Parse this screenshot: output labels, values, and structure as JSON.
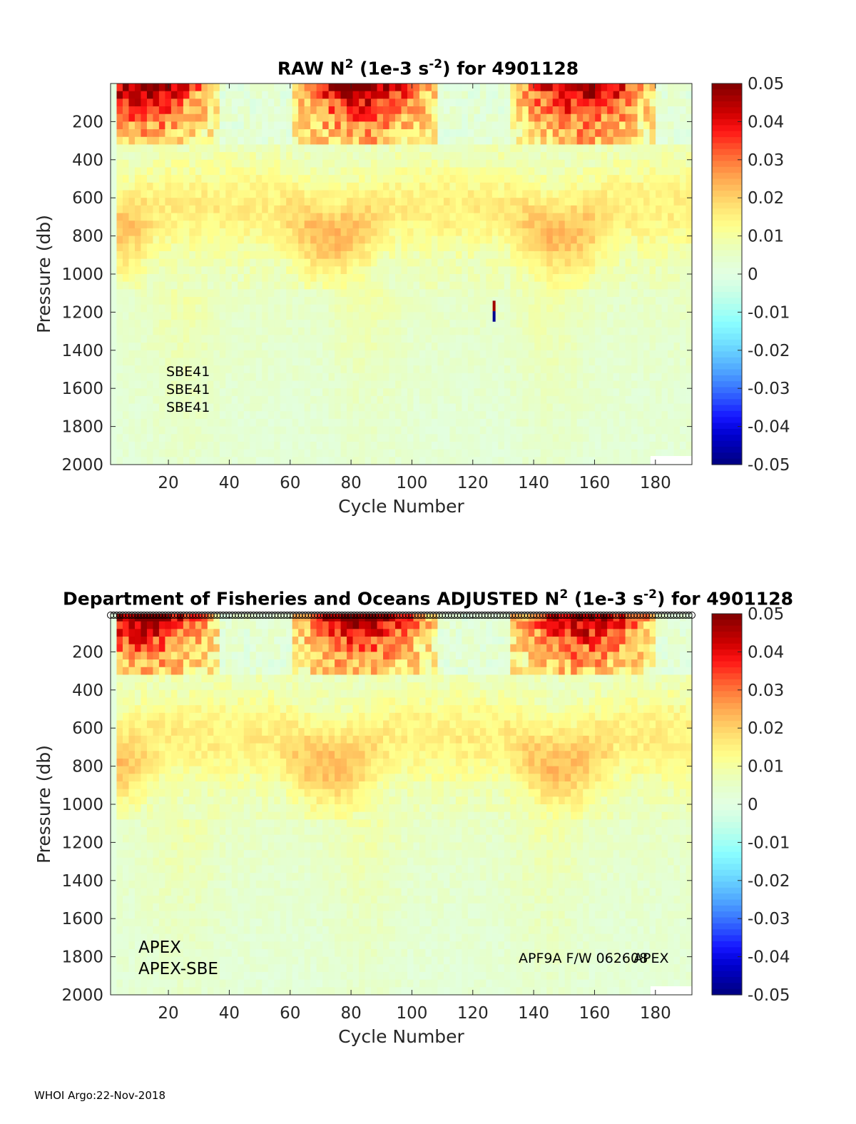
{
  "chart_data": [
    {
      "type": "heatmap",
      "title_prefix": "RAW N",
      "title_sup1": "2",
      "title_mid": " (1e-3 s",
      "title_sup2": "-2",
      "title_suffix": ") for 4901128",
      "xlabel": "Cycle Number",
      "ylabel": "Pressure (db)",
      "xlim": [
        1,
        192
      ],
      "ylim": [
        0,
        2000
      ],
      "y_reversed": true,
      "xticks": [
        "20",
        "40",
        "60",
        "80",
        "100",
        "120",
        "140",
        "160",
        "180"
      ],
      "yticks": [
        "200",
        "400",
        "600",
        "800",
        "1000",
        "1200",
        "1400",
        "1600",
        "1800",
        "2000"
      ],
      "colorbar": {
        "ticks": [
          "0.05",
          "0.04",
          "0.03",
          "0.02",
          "0.01",
          "0",
          "-0.01",
          "-0.02",
          "-0.03",
          "-0.04",
          "-0.05"
        ],
        "range": [
          -0.05,
          0.05
        ],
        "colormap": "jet"
      },
      "annotations": [
        "SBE41",
        "SBE41",
        "SBE41"
      ],
      "outlier": {
        "cycle": 127,
        "pressure_range": [
          1140,
          1250
        ]
      },
      "approx_field": "Strongly positive N2 (0.03-0.05) in the upper 0-300 db, seasonal bands of ~0.02 between 400-1000 db deepening around cycles 70-110 and 140-165, near-zero weakly positive values below 1200 db"
    },
    {
      "type": "heatmap",
      "title_prefix": "Department of Fisheries and Oceans  ADJUSTED N",
      "title_sup1": "2",
      "title_mid": " (1e-3 s",
      "title_sup2": "-2",
      "title_suffix": ") for 4901128",
      "xlabel": "Cycle Number",
      "ylabel": "Pressure (db)",
      "xlim": [
        1,
        192
      ],
      "ylim": [
        0,
        2000
      ],
      "y_reversed": true,
      "xticks": [
        "20",
        "40",
        "60",
        "80",
        "100",
        "120",
        "140",
        "160",
        "180"
      ],
      "yticks": [
        "200",
        "400",
        "600",
        "800",
        "1000",
        "1200",
        "1400",
        "1600",
        "1800",
        "2000"
      ],
      "colorbar": {
        "ticks": [
          "0.05",
          "0.04",
          "0.03",
          "0.02",
          "0.01",
          "0",
          "-0.01",
          "-0.02",
          "-0.03",
          "-0.04",
          "-0.05"
        ],
        "range": [
          -0.05,
          0.05
        ],
        "colormap": "jet"
      },
      "annotations_left": [
        "APEX",
        "APEX-SBE"
      ],
      "annotation_right_1": "APF9A F/W 062608",
      "annotation_right_2": "APEX",
      "surface_markers": "open circles at every cycle along the top axis"
    }
  ],
  "footer": "WHOI Argo:22-Nov-2018"
}
